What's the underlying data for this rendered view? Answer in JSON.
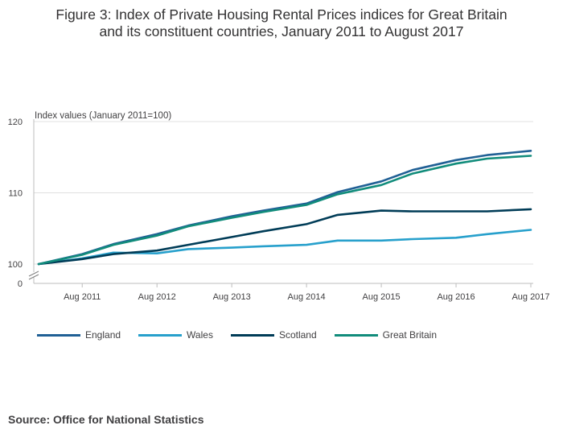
{
  "title_lines": [
    "Figure 3: Index of Private Housing Rental Prices indices for Great Britain",
    "and its constituent countries, January 2011 to August 2017"
  ],
  "source": "Source: Office for National Statistics",
  "chart_data": {
    "type": "line",
    "ylabel": "Index values (January 2011=100)",
    "y_ticks": [
      0,
      100,
      110,
      120
    ],
    "y_axis_break": "between 0 and 100",
    "ylim": [
      100,
      120
    ],
    "x_tick_labels": [
      "Aug 2011",
      "Aug 2012",
      "Aug 2013",
      "Aug 2014",
      "Aug 2015",
      "Aug 2016",
      "Aug 2017"
    ],
    "x_start": "Jan 2011",
    "x_end": "Aug 2017",
    "grid": "horizontal",
    "legend_position": "bottom",
    "colors": {
      "England": "#206095",
      "Wales": "#27a0cc",
      "Scotland": "#003c57",
      "Great Britain": "#118c7b"
    },
    "series": [
      {
        "name": "England",
        "color": "#206095",
        "points": [
          [
            "Jan 2011",
            100
          ],
          [
            "Aug 2011",
            101.4
          ],
          [
            "Jan 2012",
            102.8
          ],
          [
            "Aug 2012",
            104.2
          ],
          [
            "Jan 2013",
            105.4
          ],
          [
            "Aug 2013",
            106.7
          ],
          [
            "Jan 2014",
            107.5
          ],
          [
            "Aug 2014",
            108.5
          ],
          [
            "Jan 2015",
            110.1
          ],
          [
            "Aug 2015",
            111.6
          ],
          [
            "Jan 2016",
            113.2
          ],
          [
            "Aug 2016",
            114.6
          ],
          [
            "Jan 2017",
            115.3
          ],
          [
            "Aug 2017",
            115.9
          ]
        ]
      },
      {
        "name": "Wales",
        "color": "#27a0cc",
        "points": [
          [
            "Jan 2011",
            100
          ],
          [
            "Aug 2011",
            100.8
          ],
          [
            "Jan 2012",
            101.6
          ],
          [
            "Aug 2012",
            101.5
          ],
          [
            "Jan 2013",
            102.1
          ],
          [
            "Aug 2013",
            102.3
          ],
          [
            "Jan 2014",
            102.5
          ],
          [
            "Aug 2014",
            102.7
          ],
          [
            "Jan 2015",
            103.3
          ],
          [
            "Aug 2015",
            103.3
          ],
          [
            "Jan 2016",
            103.5
          ],
          [
            "Aug 2016",
            103.7
          ],
          [
            "Jan 2017",
            104.2
          ],
          [
            "Aug 2017",
            104.8
          ]
        ]
      },
      {
        "name": "Scotland",
        "color": "#003c57",
        "points": [
          [
            "Jan 2011",
            100
          ],
          [
            "Aug 2011",
            100.7
          ],
          [
            "Jan 2012",
            101.4
          ],
          [
            "Aug 2012",
            101.9
          ],
          [
            "Jan 2013",
            102.7
          ],
          [
            "Aug 2013",
            103.8
          ],
          [
            "Jan 2014",
            104.6
          ],
          [
            "Aug 2014",
            105.6
          ],
          [
            "Jan 2015",
            106.9
          ],
          [
            "Aug 2015",
            107.5
          ],
          [
            "Jan 2016",
            107.4
          ],
          [
            "Aug 2016",
            107.4
          ],
          [
            "Jan 2017",
            107.4
          ],
          [
            "Aug 2017",
            107.7
          ]
        ]
      },
      {
        "name": "Great Britain",
        "color": "#118c7b",
        "points": [
          [
            "Jan 2011",
            100
          ],
          [
            "Aug 2011",
            101.3
          ],
          [
            "Jan 2012",
            102.7
          ],
          [
            "Aug 2012",
            104.0
          ],
          [
            "Jan 2013",
            105.3
          ],
          [
            "Aug 2013",
            106.5
          ],
          [
            "Jan 2014",
            107.3
          ],
          [
            "Aug 2014",
            108.3
          ],
          [
            "Jan 2015",
            109.8
          ],
          [
            "Aug 2015",
            111.1
          ],
          [
            "Jan 2016",
            112.7
          ],
          [
            "Aug 2016",
            114.1
          ],
          [
            "Jan 2017",
            114.8
          ],
          [
            "Aug 2017",
            115.2
          ]
        ]
      }
    ]
  }
}
